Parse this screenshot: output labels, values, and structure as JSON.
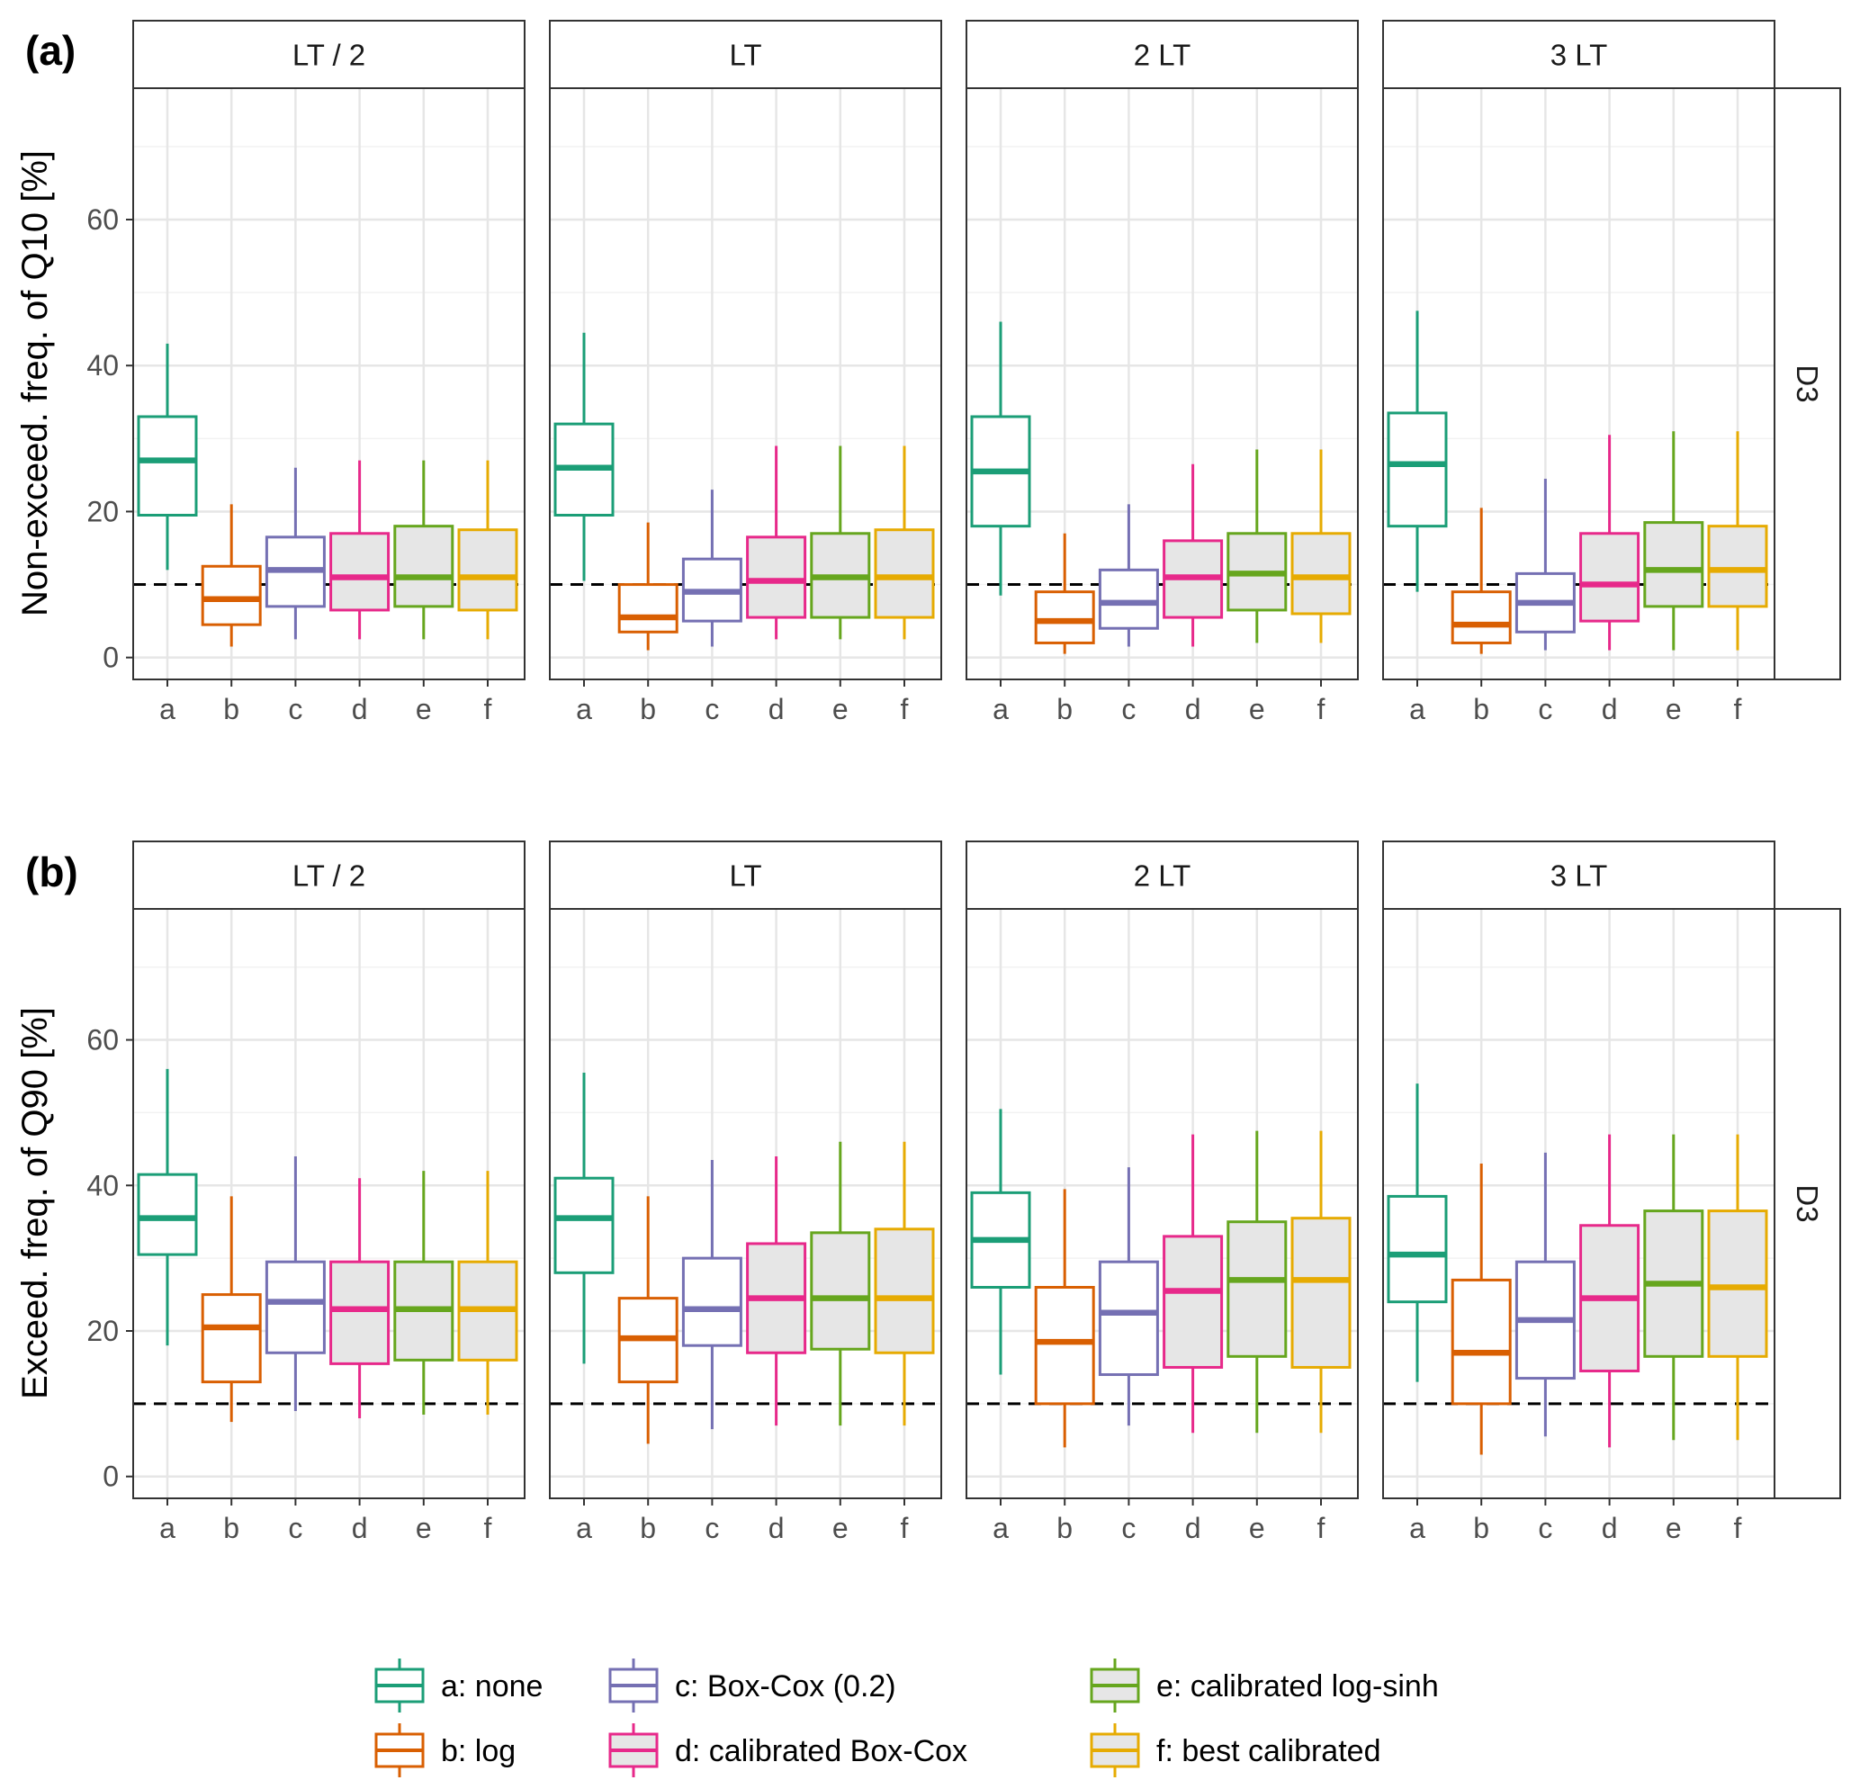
{
  "chart_data": [
    {
      "panel_tag": "(a)",
      "type": "box",
      "ylabel": "Non-exceed. freq. of Q10 [%]",
      "row_strip": "D3",
      "ylim": [
        -3,
        78
      ],
      "yticks": [
        0,
        20,
        40,
        60
      ],
      "reference_line": 10,
      "categories": [
        "a",
        "b",
        "c",
        "d",
        "e",
        "f"
      ],
      "facets": [
        {
          "label": "LT / 2",
          "boxes": [
            {
              "cat": "a",
              "min": 12,
              "q1": 19.5,
              "median": 27,
              "q3": 33,
              "max": 43
            },
            {
              "cat": "b",
              "min": 1.5,
              "q1": 4.5,
              "median": 8,
              "q3": 12.5,
              "max": 21
            },
            {
              "cat": "c",
              "min": 2.5,
              "q1": 7,
              "median": 12,
              "q3": 16.5,
              "max": 26
            },
            {
              "cat": "d",
              "min": 2.5,
              "q1": 6.5,
              "median": 11,
              "q3": 17,
              "max": 27
            },
            {
              "cat": "e",
              "min": 2.5,
              "q1": 7,
              "median": 11,
              "q3": 18,
              "max": 27
            },
            {
              "cat": "f",
              "min": 2.5,
              "q1": 6.5,
              "median": 11,
              "q3": 17.5,
              "max": 27
            }
          ]
        },
        {
          "label": "LT",
          "boxes": [
            {
              "cat": "a",
              "min": 10.5,
              "q1": 19.5,
              "median": 26,
              "q3": 32,
              "max": 44.5
            },
            {
              "cat": "b",
              "min": 1,
              "q1": 3.5,
              "median": 5.5,
              "q3": 10,
              "max": 18.5
            },
            {
              "cat": "c",
              "min": 1.5,
              "q1": 5,
              "median": 9,
              "q3": 13.5,
              "max": 23
            },
            {
              "cat": "d",
              "min": 2.5,
              "q1": 5.5,
              "median": 10.5,
              "q3": 16.5,
              "max": 29
            },
            {
              "cat": "e",
              "min": 2.5,
              "q1": 5.5,
              "median": 11,
              "q3": 17,
              "max": 29
            },
            {
              "cat": "f",
              "min": 2.5,
              "q1": 5.5,
              "median": 11,
              "q3": 17.5,
              "max": 29
            }
          ]
        },
        {
          "label": "2 LT",
          "boxes": [
            {
              "cat": "a",
              "min": 8.5,
              "q1": 18,
              "median": 25.5,
              "q3": 33,
              "max": 46
            },
            {
              "cat": "b",
              "min": 0.5,
              "q1": 2,
              "median": 5,
              "q3": 9,
              "max": 17
            },
            {
              "cat": "c",
              "min": 1.5,
              "q1": 4,
              "median": 7.5,
              "q3": 12,
              "max": 21
            },
            {
              "cat": "d",
              "min": 1.5,
              "q1": 5.5,
              "median": 11,
              "q3": 16,
              "max": 26.5
            },
            {
              "cat": "e",
              "min": 2,
              "q1": 6.5,
              "median": 11.5,
              "q3": 17,
              "max": 28.5
            },
            {
              "cat": "f",
              "min": 2,
              "q1": 6,
              "median": 11,
              "q3": 17,
              "max": 28.5
            }
          ]
        },
        {
          "label": "3 LT",
          "boxes": [
            {
              "cat": "a",
              "min": 9,
              "q1": 18,
              "median": 26.5,
              "q3": 33.5,
              "max": 47.5
            },
            {
              "cat": "b",
              "min": 0.5,
              "q1": 2,
              "median": 4.5,
              "q3": 9,
              "max": 20.5
            },
            {
              "cat": "c",
              "min": 1,
              "q1": 3.5,
              "median": 7.5,
              "q3": 11.5,
              "max": 24.5
            },
            {
              "cat": "d",
              "min": 1,
              "q1": 5,
              "median": 10,
              "q3": 17,
              "max": 30.5
            },
            {
              "cat": "e",
              "min": 1,
              "q1": 7,
              "median": 12,
              "q3": 18.5,
              "max": 31
            },
            {
              "cat": "f",
              "min": 1,
              "q1": 7,
              "median": 12,
              "q3": 18,
              "max": 31
            }
          ]
        }
      ]
    },
    {
      "panel_tag": "(b)",
      "type": "box",
      "ylabel": "Exceed. freq. of Q90 [%]",
      "row_strip": "D3",
      "ylim": [
        -3,
        78
      ],
      "yticks": [
        0,
        20,
        40,
        60
      ],
      "reference_line": 10,
      "categories": [
        "a",
        "b",
        "c",
        "d",
        "e",
        "f"
      ],
      "facets": [
        {
          "label": "LT / 2",
          "boxes": [
            {
              "cat": "a",
              "min": 18,
              "q1": 30.5,
              "median": 35.5,
              "q3": 41.5,
              "max": 56
            },
            {
              "cat": "b",
              "min": 7.5,
              "q1": 13,
              "median": 20.5,
              "q3": 25,
              "max": 38.5
            },
            {
              "cat": "c",
              "min": 9,
              "q1": 17,
              "median": 24,
              "q3": 29.5,
              "max": 44
            },
            {
              "cat": "d",
              "min": 8,
              "q1": 15.5,
              "median": 23,
              "q3": 29.5,
              "max": 41
            },
            {
              "cat": "e",
              "min": 8.5,
              "q1": 16,
              "median": 23,
              "q3": 29.5,
              "max": 42
            },
            {
              "cat": "f",
              "min": 8.5,
              "q1": 16,
              "median": 23,
              "q3": 29.5,
              "max": 42
            }
          ]
        },
        {
          "label": "LT",
          "boxes": [
            {
              "cat": "a",
              "min": 15.5,
              "q1": 28,
              "median": 35.5,
              "q3": 41,
              "max": 55.5
            },
            {
              "cat": "b",
              "min": 4.5,
              "q1": 13,
              "median": 19,
              "q3": 24.5,
              "max": 38.5
            },
            {
              "cat": "c",
              "min": 6.5,
              "q1": 18,
              "median": 23,
              "q3": 30,
              "max": 43.5
            },
            {
              "cat": "d",
              "min": 7,
              "q1": 17,
              "median": 24.5,
              "q3": 32,
              "max": 44
            },
            {
              "cat": "e",
              "min": 7,
              "q1": 17.5,
              "median": 24.5,
              "q3": 33.5,
              "max": 46
            },
            {
              "cat": "f",
              "min": 7,
              "q1": 17,
              "median": 24.5,
              "q3": 34,
              "max": 46
            }
          ]
        },
        {
          "label": "2 LT",
          "boxes": [
            {
              "cat": "a",
              "min": 14,
              "q1": 26,
              "median": 32.5,
              "q3": 39,
              "max": 50.5
            },
            {
              "cat": "b",
              "min": 4,
              "q1": 10,
              "median": 18.5,
              "q3": 26,
              "max": 39.5
            },
            {
              "cat": "c",
              "min": 7,
              "q1": 14,
              "median": 22.5,
              "q3": 29.5,
              "max": 42.5
            },
            {
              "cat": "d",
              "min": 6,
              "q1": 15,
              "median": 25.5,
              "q3": 33,
              "max": 47
            },
            {
              "cat": "e",
              "min": 6,
              "q1": 16.5,
              "median": 27,
              "q3": 35,
              "max": 47.5
            },
            {
              "cat": "f",
              "min": 6,
              "q1": 15,
              "median": 27,
              "q3": 35.5,
              "max": 47.5
            }
          ]
        },
        {
          "label": "3 LT",
          "boxes": [
            {
              "cat": "a",
              "min": 13,
              "q1": 24,
              "median": 30.5,
              "q3": 38.5,
              "max": 54
            },
            {
              "cat": "b",
              "min": 3,
              "q1": 10,
              "median": 17,
              "q3": 27,
              "max": 43
            },
            {
              "cat": "c",
              "min": 5.5,
              "q1": 13.5,
              "median": 21.5,
              "q3": 29.5,
              "max": 44.5
            },
            {
              "cat": "d",
              "min": 4,
              "q1": 14.5,
              "median": 24.5,
              "q3": 34.5,
              "max": 47
            },
            {
              "cat": "e",
              "min": 5,
              "q1": 16.5,
              "median": 26.5,
              "q3": 36.5,
              "max": 47
            },
            {
              "cat": "f",
              "min": 5,
              "q1": 16.5,
              "median": 26,
              "q3": 36.5,
              "max": 47
            }
          ]
        }
      ]
    }
  ],
  "styles": {
    "a": {
      "color": "#1B9E77",
      "fill": "#FFFFFF"
    },
    "b": {
      "color": "#D95F02",
      "fill": "#FFFFFF"
    },
    "c": {
      "color": "#7570B3",
      "fill": "#FFFFFF"
    },
    "d": {
      "color": "#E7298A",
      "fill": "#E6E6E6"
    },
    "e": {
      "color": "#66A61E",
      "fill": "#E6E6E6"
    },
    "f": {
      "color": "#E6AB02",
      "fill": "#E6E6E6"
    }
  },
  "legend": {
    "items": [
      {
        "key": "a",
        "label": "a: none"
      },
      {
        "key": "b",
        "label": "b: log"
      },
      {
        "key": "c",
        "label": "c: Box-Cox (0.2)"
      },
      {
        "key": "d",
        "label": "d: calibrated Box-Cox"
      },
      {
        "key": "e",
        "label": "e: calibrated log-sinh"
      },
      {
        "key": "f",
        "label": "f: best calibrated"
      }
    ]
  }
}
